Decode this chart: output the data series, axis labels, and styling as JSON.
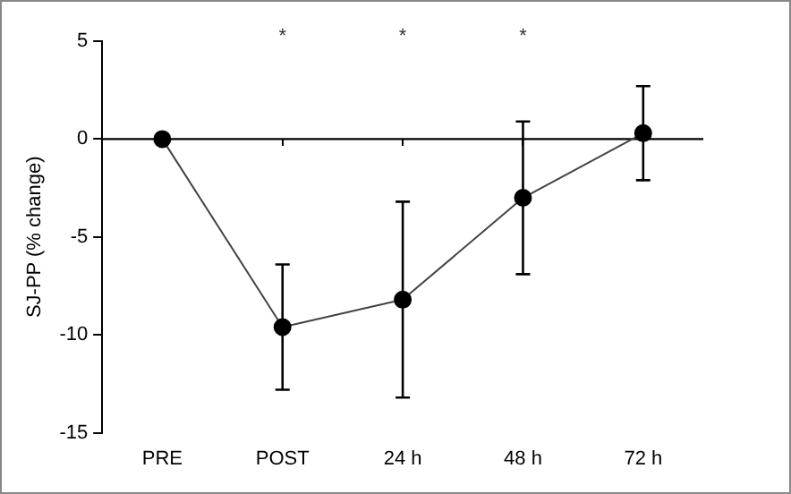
{
  "chart_data": {
    "type": "line",
    "ylabel": "SJ-PP (% change)",
    "categories": [
      "PRE",
      "POST",
      "24 h",
      "48 h",
      "72 h"
    ],
    "series": [
      {
        "color": "#000000",
        "values": [
          0,
          -9.6,
          -8.2,
          -3.0,
          0.3
        ],
        "errors": [
          null,
          3.2,
          5.0,
          3.9,
          2.4
        ]
      }
    ],
    "ylim": [
      -15,
      5
    ],
    "yticks": [
      -15,
      -10,
      -5,
      0,
      5
    ],
    "annotations": [
      "*",
      "*",
      "*"
    ],
    "ref_lines": [
      {
        "axis": "y",
        "value": 0,
        "color": "#000000",
        "line_style": "solid"
      }
    ],
    "grid": false,
    "legend": false,
    "marker": "circle",
    "line_style": "solid"
  }
}
